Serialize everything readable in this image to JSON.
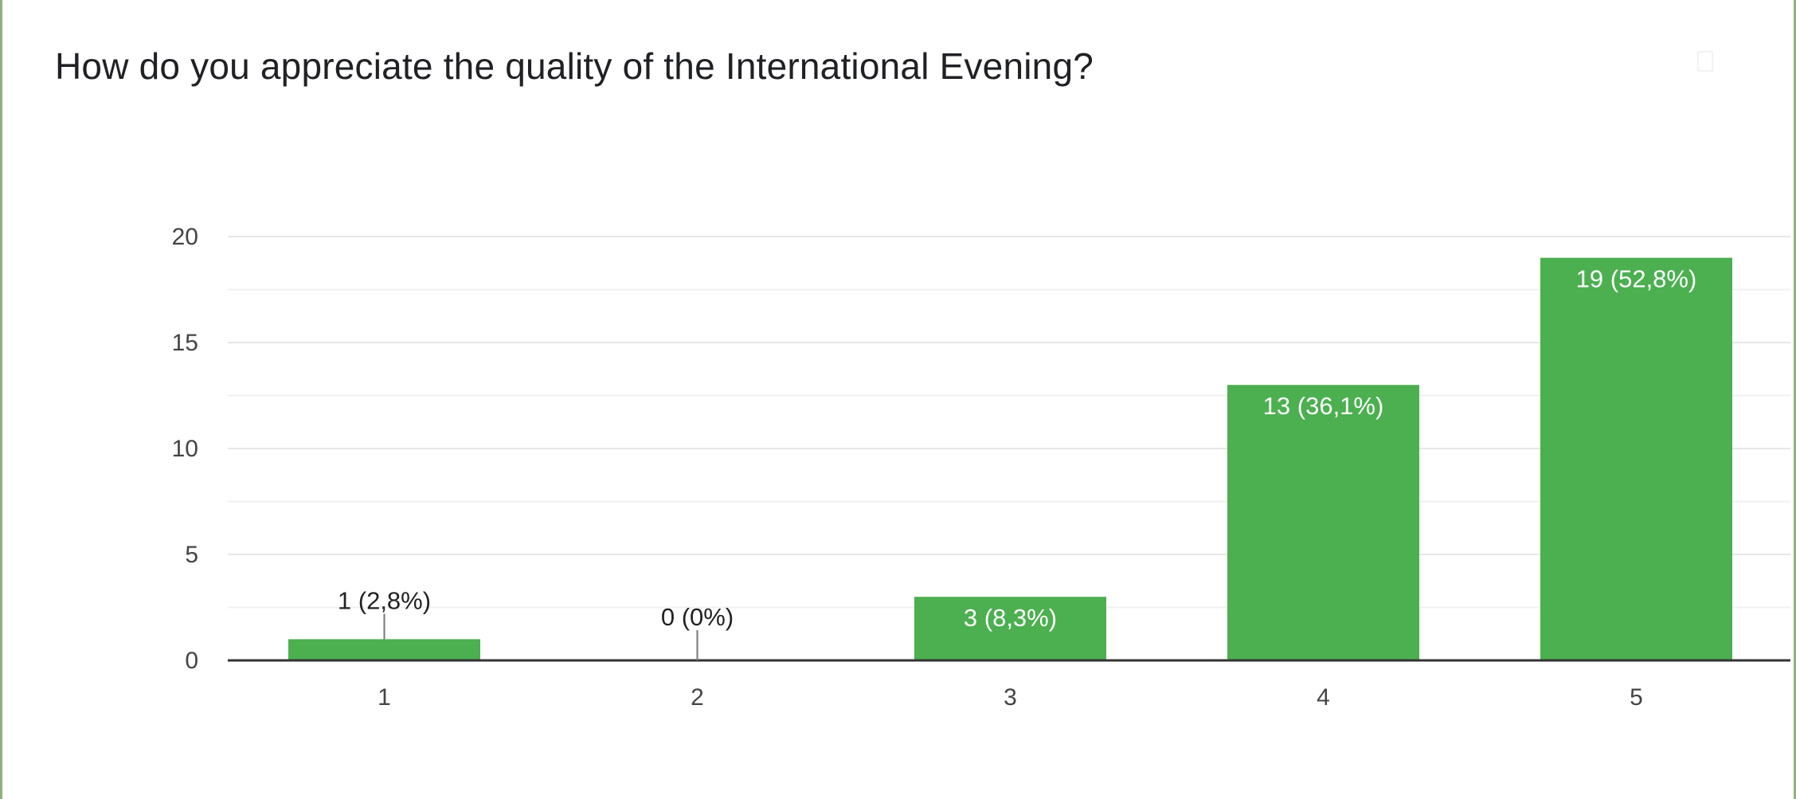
{
  "question": {
    "title": "How do you appreciate the quality of the International Evening?"
  },
  "chart_data": {
    "type": "bar",
    "categories": [
      "1",
      "2",
      "3",
      "4",
      "5"
    ],
    "values": [
      1,
      0,
      3,
      13,
      19
    ],
    "data_labels": [
      "1 (2,8%)",
      "0 (0%)",
      "3 (8,3%)",
      "13 (36,1%)",
      "19 (52,8%)"
    ],
    "yticks": [
      0,
      5,
      10,
      15,
      20
    ],
    "ylim": [
      0,
      20
    ],
    "title": "How do you appreciate the quality of the International Evening?",
    "xlabel": "",
    "ylabel": "",
    "grid": true,
    "bar_color": "#4caf50",
    "gridline_color": "#e6e6e6",
    "axis_color": "#333333"
  }
}
